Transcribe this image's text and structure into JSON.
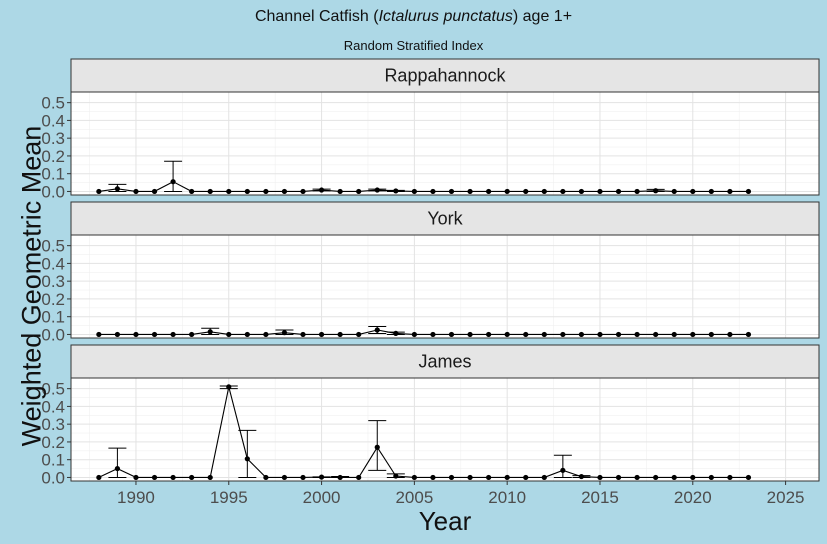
{
  "title_prefix": "Channel Catfish",
  "title_italic": "Ictalurus punctatus",
  "title_suffix": "age 1+",
  "subtitle": "Random Stratified Index",
  "chart_data": {
    "type": "line",
    "xlabel": "Year",
    "ylabel": "Weighted Geometric Mean",
    "xlim": [
      1986.5,
      2026.8
    ],
    "ylim": [
      -0.02,
      0.56
    ],
    "x_ticks": [
      1990,
      1995,
      2000,
      2005,
      2010,
      2015,
      2020,
      2025
    ],
    "y_ticks": [
      0.0,
      0.1,
      0.2,
      0.3,
      0.4,
      0.5
    ],
    "grid": true,
    "error_bars": true,
    "panels": [
      {
        "name": "Rappahannock",
        "x": [
          1988,
          1989,
          1990,
          1991,
          1992,
          1993,
          1994,
          1995,
          1996,
          1997,
          1998,
          1999,
          2000,
          2001,
          2002,
          2003,
          2004,
          2005,
          2006,
          2007,
          2008,
          2009,
          2010,
          2011,
          2012,
          2013,
          2014,
          2015,
          2016,
          2017,
          2018,
          2019,
          2020,
          2021,
          2022,
          2023
        ],
        "y": [
          0,
          0.015,
          0,
          0,
          0.055,
          0,
          0,
          0,
          0,
          0,
          0,
          0,
          0.008,
          0,
          0,
          0.008,
          0.003,
          0,
          0,
          0,
          0,
          0,
          0,
          0,
          0,
          0,
          0,
          0,
          0,
          0,
          0.004,
          0,
          0,
          0,
          0,
          0
        ],
        "upper": [
          0,
          0.04,
          0,
          0,
          0.17,
          0,
          0,
          0,
          0,
          0,
          0,
          0,
          0.013,
          0,
          0,
          0.013,
          0.006,
          0,
          0,
          0,
          0,
          0,
          0,
          0,
          0,
          0,
          0,
          0,
          0,
          0,
          0.012,
          0,
          0,
          0,
          0,
          0
        ],
        "lower": [
          0,
          0,
          0,
          0,
          0,
          0,
          0,
          0,
          0,
          0,
          0,
          0,
          0.003,
          0,
          0,
          0.003,
          0,
          0,
          0,
          0,
          0,
          0,
          0,
          0,
          0,
          0,
          0,
          0,
          0,
          0,
          0,
          0,
          0,
          0,
          0,
          0
        ]
      },
      {
        "name": "York",
        "x": [
          1988,
          1989,
          1990,
          1991,
          1992,
          1993,
          1994,
          1995,
          1996,
          1997,
          1998,
          1999,
          2000,
          2001,
          2002,
          2003,
          2004,
          2005,
          2006,
          2007,
          2008,
          2009,
          2010,
          2011,
          2012,
          2013,
          2014,
          2015,
          2016,
          2017,
          2018,
          2019,
          2020,
          2021,
          2022,
          2023
        ],
        "y": [
          0,
          0,
          0,
          0,
          0,
          0,
          0.015,
          0,
          0,
          0,
          0.01,
          0,
          0,
          0,
          0,
          0.025,
          0.006,
          0,
          0,
          0,
          0,
          0,
          0,
          0,
          0,
          0,
          0,
          0,
          0,
          0,
          0,
          0,
          0,
          0,
          0,
          0
        ],
        "upper": [
          0,
          0,
          0,
          0,
          0,
          0,
          0.035,
          0,
          0,
          0,
          0.025,
          0,
          0,
          0,
          0,
          0.045,
          0.013,
          0,
          0,
          0,
          0,
          0,
          0,
          0,
          0,
          0,
          0,
          0,
          0,
          0,
          0,
          0,
          0,
          0,
          0,
          0
        ],
        "lower": [
          0,
          0,
          0,
          0,
          0,
          0,
          0,
          0,
          0,
          0,
          0,
          0,
          0,
          0,
          0,
          0.005,
          0,
          0,
          0,
          0,
          0,
          0,
          0,
          0,
          0,
          0,
          0,
          0,
          0,
          0,
          0,
          0,
          0,
          0,
          0,
          0
        ]
      },
      {
        "name": "James",
        "x": [
          1988,
          1989,
          1990,
          1991,
          1992,
          1993,
          1994,
          1995,
          1996,
          1997,
          1998,
          1999,
          2000,
          2001,
          2002,
          2003,
          2004,
          2005,
          2006,
          2007,
          2008,
          2009,
          2010,
          2011,
          2012,
          2013,
          2014,
          2015,
          2016,
          2017,
          2018,
          2019,
          2020,
          2021,
          2022,
          2023
        ],
        "y": [
          0,
          0.05,
          0,
          0,
          0,
          0,
          0,
          0.51,
          0.105,
          0,
          0,
          0,
          0.002,
          0,
          0,
          0.17,
          0.008,
          0,
          0,
          0,
          0,
          0,
          0,
          0,
          0,
          0.04,
          0.005,
          0,
          0,
          0,
          0,
          0,
          0,
          0,
          0,
          0
        ],
        "upper": [
          0,
          0.165,
          0,
          0,
          0,
          0,
          0,
          0.515,
          0.265,
          0,
          0,
          0,
          0.003,
          0.005,
          0,
          0.32,
          0.02,
          0,
          0,
          0,
          0,
          0,
          0,
          0,
          0,
          0.125,
          0.01,
          0,
          0,
          0,
          0,
          0,
          0,
          0,
          0,
          0
        ],
        "lower": [
          0,
          0,
          0,
          0,
          0,
          0,
          0,
          0.5,
          0,
          0,
          0,
          0,
          0,
          0,
          0,
          0.04,
          0,
          0,
          0,
          0,
          0,
          0,
          0,
          0,
          0,
          0,
          0,
          0,
          0,
          0,
          0,
          0,
          0,
          0,
          0,
          0
        ]
      }
    ]
  }
}
